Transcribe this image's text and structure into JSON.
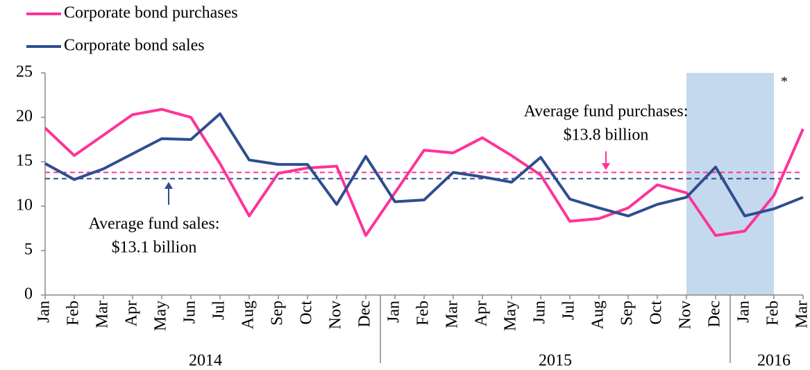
{
  "chart_data": {
    "type": "line",
    "categories": [
      "Jan",
      "Feb",
      "Mar",
      "Apr",
      "May",
      "Jun",
      "Jul",
      "Aug",
      "Sep",
      "Oct",
      "Nov",
      "Dec",
      "Jan",
      "Feb",
      "Mar",
      "Apr",
      "May",
      "Jun",
      "Jul",
      "Aug",
      "Sep",
      "Oct",
      "Nov",
      "Dec",
      "Jan",
      "Feb",
      "Mar"
    ],
    "year_groups": [
      {
        "label": "2014",
        "months": 12
      },
      {
        "label": "2015",
        "months": 12
      },
      {
        "label": "2016",
        "months": 3
      }
    ],
    "series": [
      {
        "name": "Corporate bond purchases",
        "color": "#ff3399",
        "values": [
          18.8,
          15.7,
          18,
          20.3,
          20.9,
          20,
          14.8,
          8.9,
          13.7,
          14.3,
          14.5,
          6.7,
          11.5,
          16.3,
          16,
          17.7,
          15.7,
          13.5,
          8.3,
          8.6,
          9.8,
          12.4,
          11.5,
          6.7,
          7.2,
          11.2,
          18.7
        ]
      },
      {
        "name": "Corporate bond sales",
        "color": "#2e4e8f",
        "values": [
          14.8,
          13,
          14.2,
          15.9,
          17.6,
          17.5,
          20.4,
          15.2,
          14.7,
          14.7,
          10.2,
          15.6,
          10.5,
          10.7,
          13.8,
          13.3,
          12.7,
          15.5,
          10.8,
          9.8,
          8.9,
          10.2,
          11,
          14.4,
          8.9,
          9.7,
          11
        ]
      }
    ],
    "reference_lines": [
      {
        "value": 13.8,
        "color": "#ff3399",
        "label": [
          "Average fund purchases:",
          "$13.8 billion"
        ]
      },
      {
        "value": 13.1,
        "color": "#2e4e8f",
        "label": [
          "Average fund sales:",
          "$13.1 billion"
        ]
      }
    ],
    "shaded": {
      "start": 22,
      "end": 25,
      "color": "#c5d9ee",
      "note": "*"
    },
    "ylim": [
      0,
      25
    ],
    "yticks": [
      0,
      5,
      10,
      15,
      20,
      25
    ]
  }
}
